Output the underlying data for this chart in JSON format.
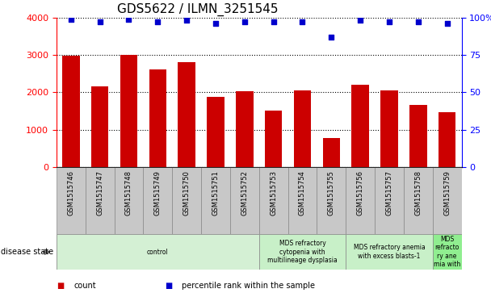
{
  "title": "GDS5622 / ILMN_3251545",
  "samples": [
    "GSM1515746",
    "GSM1515747",
    "GSM1515748",
    "GSM1515749",
    "GSM1515750",
    "GSM1515751",
    "GSM1515752",
    "GSM1515753",
    "GSM1515754",
    "GSM1515755",
    "GSM1515756",
    "GSM1515757",
    "GSM1515758",
    "GSM1515759"
  ],
  "counts": [
    2980,
    2150,
    3000,
    2620,
    2800,
    1870,
    2020,
    1500,
    2060,
    780,
    2200,
    2060,
    1670,
    1470
  ],
  "percentile_ranks": [
    99,
    97,
    99,
    97,
    98,
    96,
    97,
    97,
    97,
    87,
    98,
    97,
    97,
    96
  ],
  "bar_color": "#cc0000",
  "dot_color": "#0000cc",
  "ylim_left": [
    0,
    4000
  ],
  "ylim_right": [
    0,
    100
  ],
  "yticks_left": [
    0,
    1000,
    2000,
    3000,
    4000
  ],
  "yticks_right": [
    0,
    25,
    50,
    75,
    100
  ],
  "yticklabels_right": [
    "0",
    "25",
    "50",
    "75",
    "100%"
  ],
  "disease_groups": [
    {
      "label": "control",
      "start": 0,
      "end": 7,
      "color": "#d4f0d4"
    },
    {
      "label": "MDS refractory\ncytopenia with\nmultilineage dysplasia",
      "start": 7,
      "end": 10,
      "color": "#c8f0c8"
    },
    {
      "label": "MDS refractory anemia\nwith excess blasts-1",
      "start": 10,
      "end": 13,
      "color": "#c8f0c8"
    },
    {
      "label": "MDS\nrefracto\nry ane\nmia with",
      "start": 13,
      "end": 14,
      "color": "#90ee90"
    }
  ],
  "disease_state_label": "disease state",
  "legend_items": [
    {
      "label": "count",
      "color": "#cc0000"
    },
    {
      "label": "percentile rank within the sample",
      "color": "#0000cc"
    }
  ],
  "tick_label_area_color": "#c8c8c8",
  "title_fontsize": 11,
  "bar_width": 0.6
}
